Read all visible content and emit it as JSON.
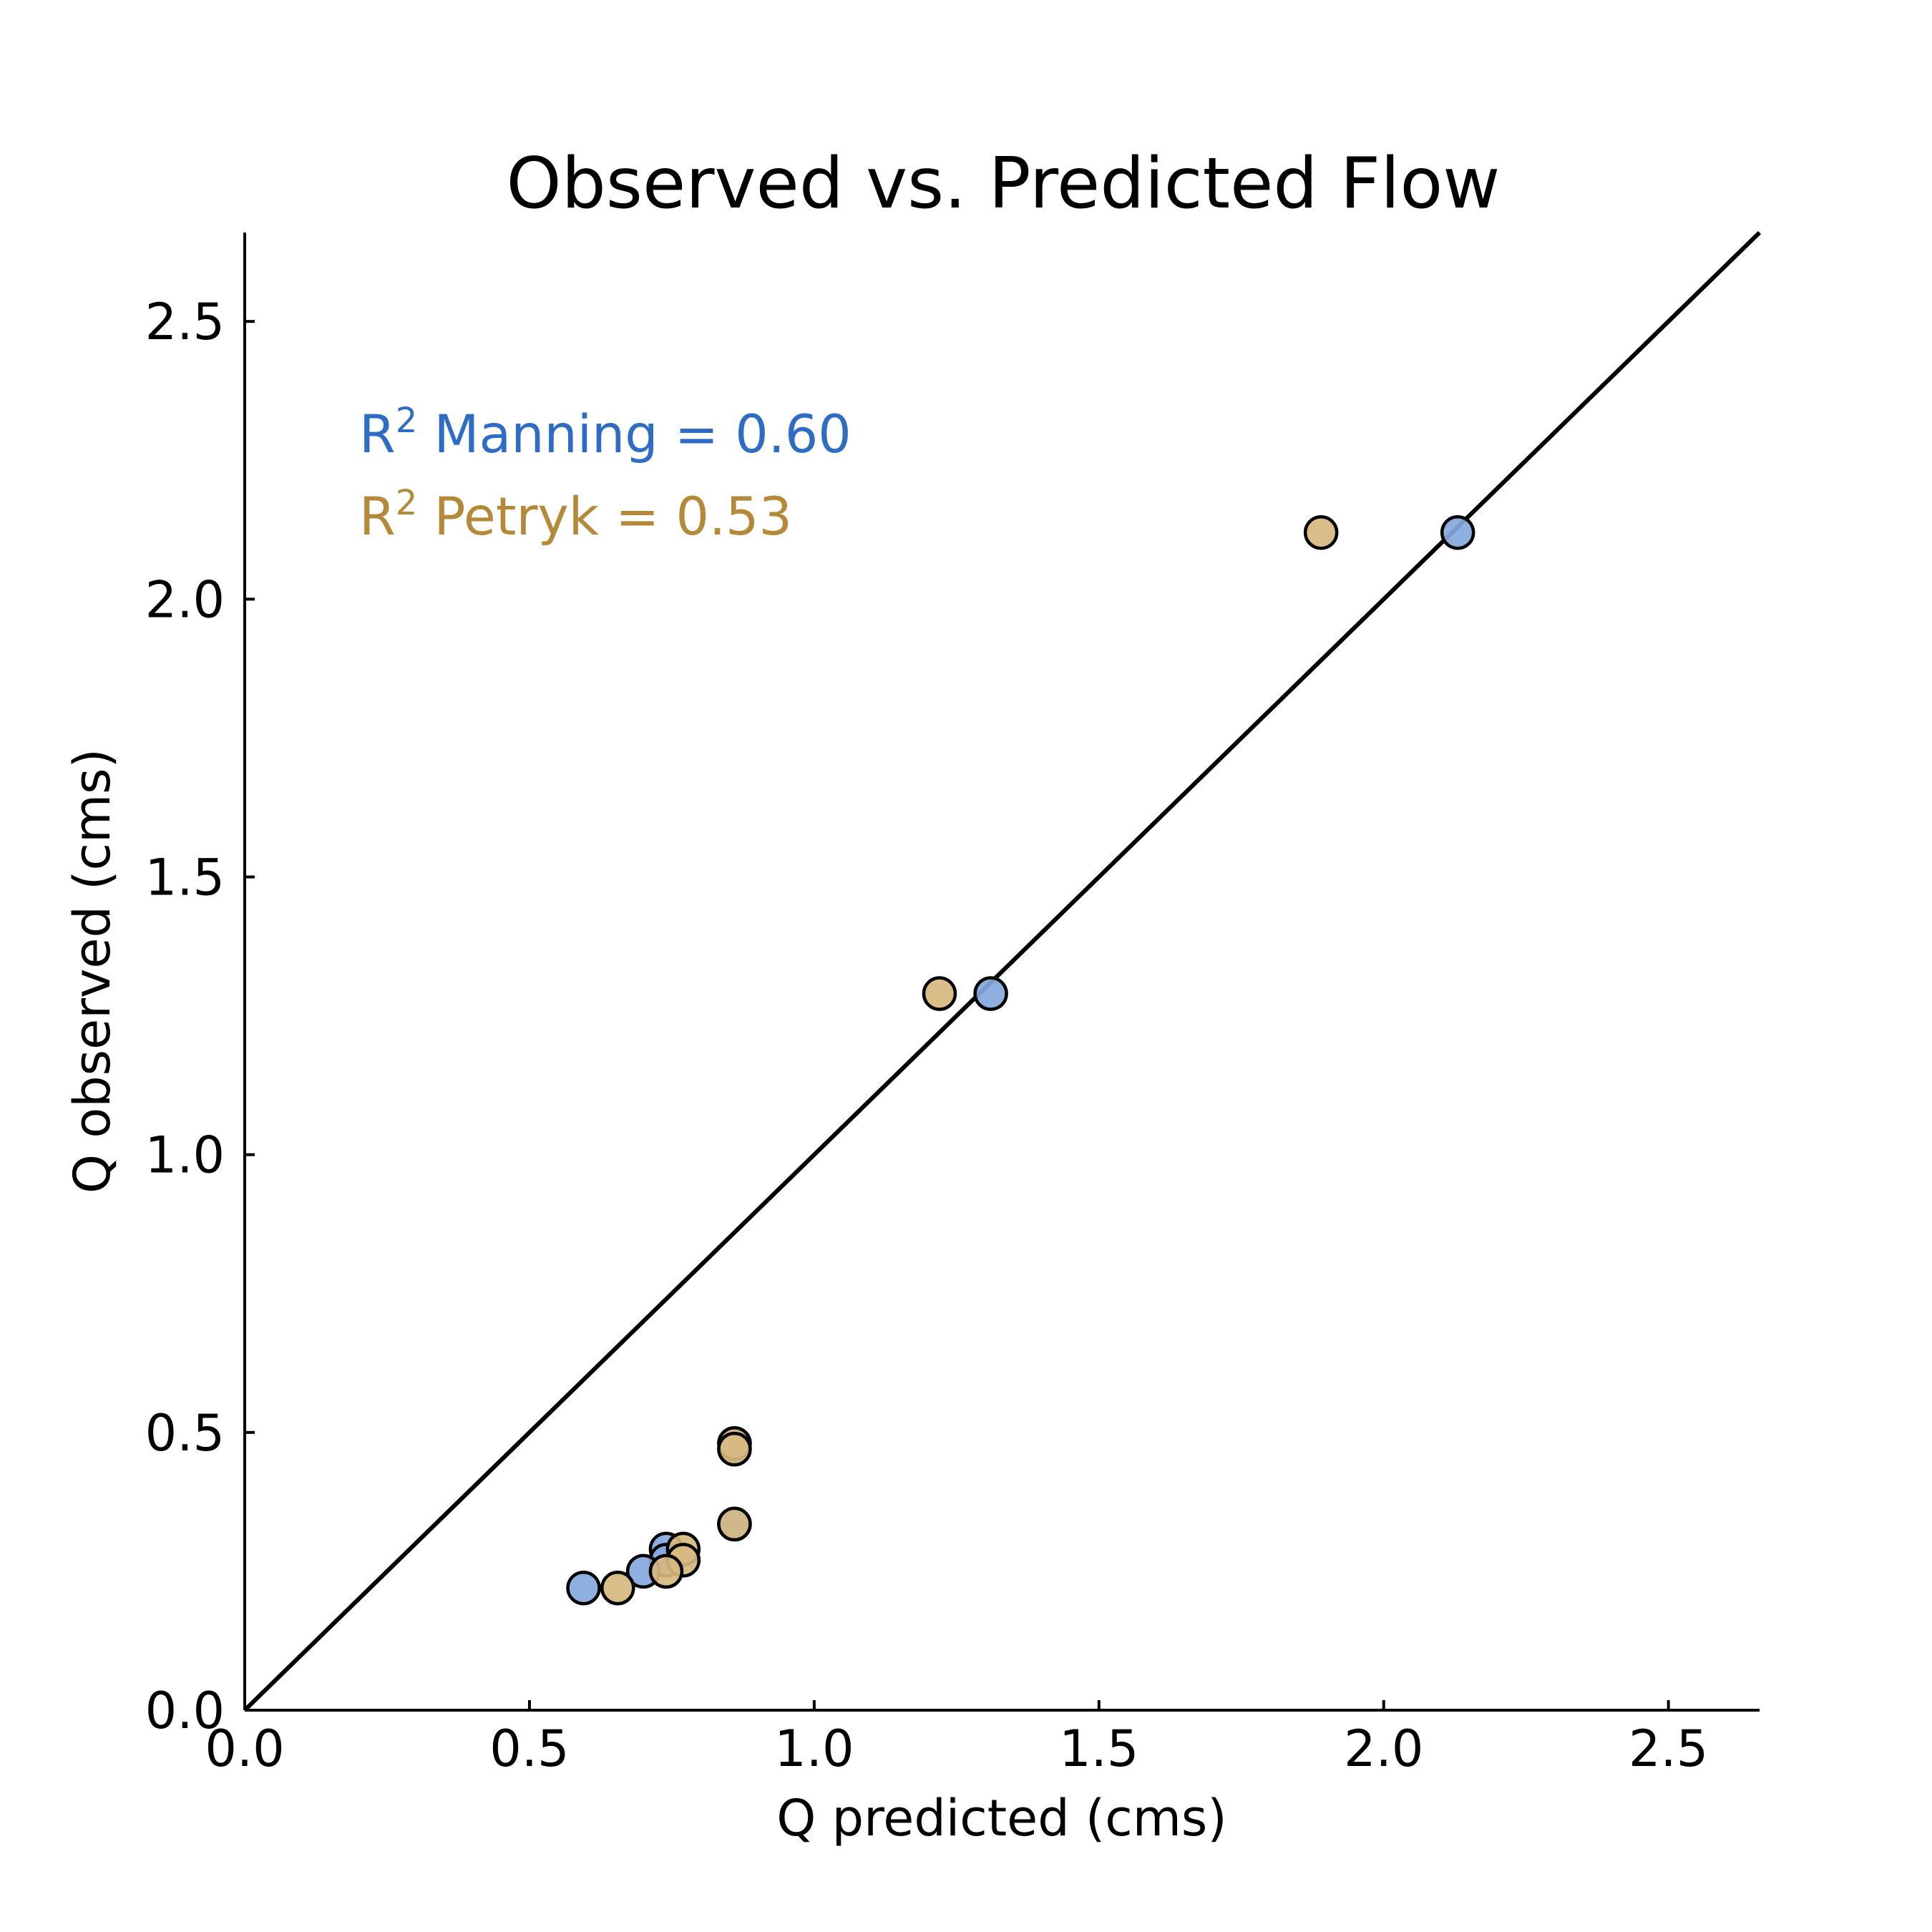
{
  "chart_data": {
    "type": "scatter",
    "title": "Observed vs. Predicted Flow",
    "xlabel": "Q predicted (cms)",
    "ylabel": "Q observed (cms)",
    "xlim": [
      0,
      2.66
    ],
    "ylim": [
      0,
      2.66
    ],
    "xticks": [
      "0.0",
      "0.5",
      "1.0",
      "1.5",
      "2.0",
      "2.5"
    ],
    "yticks": [
      "0.0",
      "0.5",
      "1.0",
      "1.5",
      "2.0",
      "2.5"
    ],
    "reference_line": "1:1",
    "grid": false,
    "annotations": [
      {
        "base": "R",
        "sup": "2",
        "text": " Manning = 0.60",
        "color": "#2f6cc4"
      },
      {
        "base": "R",
        "sup": "2",
        "text": " Petryk = 0.53",
        "color": "#b5893a"
      }
    ],
    "series": [
      {
        "color": "#84a8dd",
        "points": [
          [
            2.13,
            2.12
          ],
          [
            1.31,
            1.29
          ],
          [
            0.86,
            0.48
          ],
          [
            0.86,
            0.47
          ],
          [
            0.86,
            0.335
          ],
          [
            0.74,
            0.29
          ],
          [
            0.74,
            0.27
          ],
          [
            0.7,
            0.25
          ],
          [
            0.595,
            0.22
          ]
        ]
      },
      {
        "color": "#d7b880",
        "points": [
          [
            1.89,
            2.12
          ],
          [
            1.22,
            1.29
          ],
          [
            0.86,
            0.48
          ],
          [
            0.86,
            0.47
          ],
          [
            0.86,
            0.335
          ],
          [
            0.77,
            0.29
          ],
          [
            0.77,
            0.27
          ],
          [
            0.74,
            0.25
          ],
          [
            0.655,
            0.22
          ]
        ]
      }
    ]
  }
}
